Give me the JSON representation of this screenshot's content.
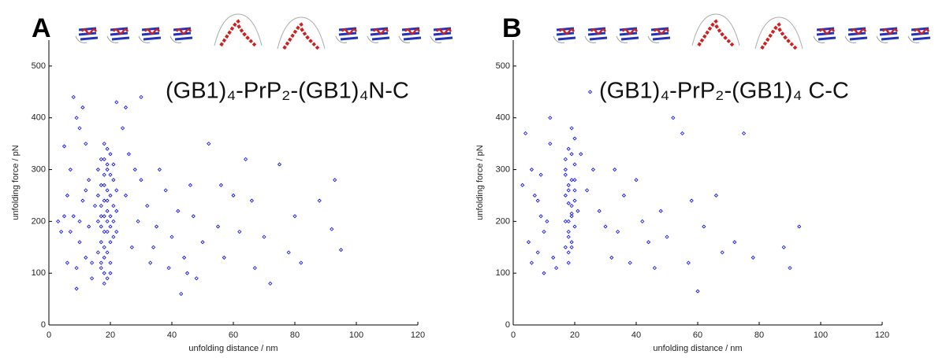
{
  "chart_data": [
    {
      "type": "scatter",
      "panel": "A",
      "title": "(GB1)₄-PrP₂-(GB1)₄N-C",
      "x_label": "unfolding distance / nm",
      "y_label": "unfolding force / pN",
      "color": "#0000ff",
      "xlim": [
        0,
        120
      ],
      "xticks": [
        0,
        20,
        40,
        60,
        80,
        100,
        120
      ],
      "ylim": [
        0,
        550
      ],
      "yticks": [
        0,
        100,
        200,
        300,
        400,
        500
      ],
      "x": [
        17,
        18,
        19,
        20,
        18,
        17,
        19,
        20,
        18,
        16,
        21,
        19,
        18,
        17,
        20,
        19,
        18,
        21,
        16,
        22,
        17,
        18,
        19,
        20,
        18,
        19,
        17,
        20,
        21,
        16,
        18,
        19,
        20,
        17,
        22,
        15,
        21,
        18,
        19,
        20,
        18,
        17,
        21,
        19,
        16,
        20,
        18,
        22,
        19,
        17,
        5,
        7,
        8,
        9,
        10,
        12,
        6,
        8,
        4,
        10,
        12,
        14,
        9,
        11,
        13,
        7,
        10,
        6,
        13,
        14,
        11,
        5,
        3,
        12,
        9,
        22,
        24,
        26,
        28,
        25,
        30,
        27,
        29,
        32,
        35,
        33,
        38,
        40,
        42,
        44,
        45,
        47,
        50,
        52,
        55,
        57,
        60,
        62,
        64,
        66,
        70,
        72,
        75,
        78,
        80,
        82,
        88,
        92,
        93,
        95,
        30,
        36,
        48,
        43,
        25,
        56,
        67,
        34,
        39,
        46
      ],
      "values": [
        120,
        150,
        180,
        210,
        240,
        270,
        300,
        330,
        100,
        200,
        230,
        260,
        290,
        190,
        160,
        140,
        320,
        280,
        250,
        220,
        230,
        210,
        200,
        250,
        180,
        310,
        160,
        120,
        170,
        140,
        350,
        90,
        290,
        320,
        260,
        230,
        200,
        270,
        240,
        190,
        130,
        110,
        310,
        340,
        300,
        100,
        80,
        180,
        220,
        210,
        345,
        300,
        440,
        400,
        380,
        350,
        250,
        210,
        180,
        160,
        130,
        120,
        110,
        240,
        280,
        180,
        200,
        120,
        190,
        90,
        420,
        210,
        200,
        260,
        70,
        430,
        380,
        330,
        300,
        250,
        280,
        150,
        200,
        230,
        190,
        120,
        260,
        170,
        220,
        130,
        100,
        210,
        160,
        350,
        190,
        130,
        250,
        180,
        320,
        240,
        170,
        80,
        310,
        140,
        210,
        120,
        240,
        185,
        280,
        145,
        440,
        300,
        90,
        60,
        420,
        270,
        110,
        150,
        110,
        270
      ]
    },
    {
      "type": "scatter",
      "panel": "B",
      "title": "(GB1)₄-PrP₂-(GB1)₄ C-C",
      "x_label": "unfolding distance / nm",
      "y_label": "unfolding force / pN",
      "color": "#0000ff",
      "xlim": [
        0,
        120
      ],
      "xticks": [
        0,
        20,
        40,
        60,
        80,
        100,
        120
      ],
      "ylim": [
        0,
        550
      ],
      "yticks": [
        0,
        100,
        200,
        300,
        400,
        500
      ],
      "x": [
        17,
        18,
        19,
        20,
        18,
        17,
        19,
        20,
        18,
        19,
        18,
        17,
        20,
        19,
        18,
        21,
        17,
        19,
        20,
        18,
        19,
        17,
        18,
        20,
        19,
        18,
        17,
        20,
        18,
        19,
        4,
        6,
        7,
        9,
        10,
        12,
        5,
        8,
        11,
        13,
        14,
        6,
        9,
        12,
        3,
        8,
        10,
        22,
        24,
        26,
        28,
        30,
        32,
        34,
        36,
        38,
        40,
        42,
        44,
        46,
        50,
        52,
        55,
        58,
        60,
        62,
        66,
        68,
        72,
        75,
        78,
        88,
        90,
        93,
        25,
        33,
        48,
        57
      ],
      "values": [
        150,
        180,
        210,
        240,
        270,
        300,
        330,
        360,
        200,
        230,
        260,
        290,
        190,
        160,
        140,
        220,
        250,
        280,
        310,
        170,
        380,
        320,
        120,
        260,
        215,
        235,
        200,
        280,
        340,
        150,
        370,
        300,
        250,
        210,
        180,
        400,
        160,
        240,
        200,
        130,
        110,
        120,
        290,
        350,
        270,
        140,
        100,
        330,
        260,
        300,
        220,
        190,
        130,
        180,
        250,
        120,
        280,
        200,
        160,
        110,
        170,
        400,
        370,
        240,
        65,
        190,
        250,
        140,
        160,
        370,
        130,
        150,
        110,
        190,
        450,
        300,
        220,
        120
      ]
    }
  ]
}
